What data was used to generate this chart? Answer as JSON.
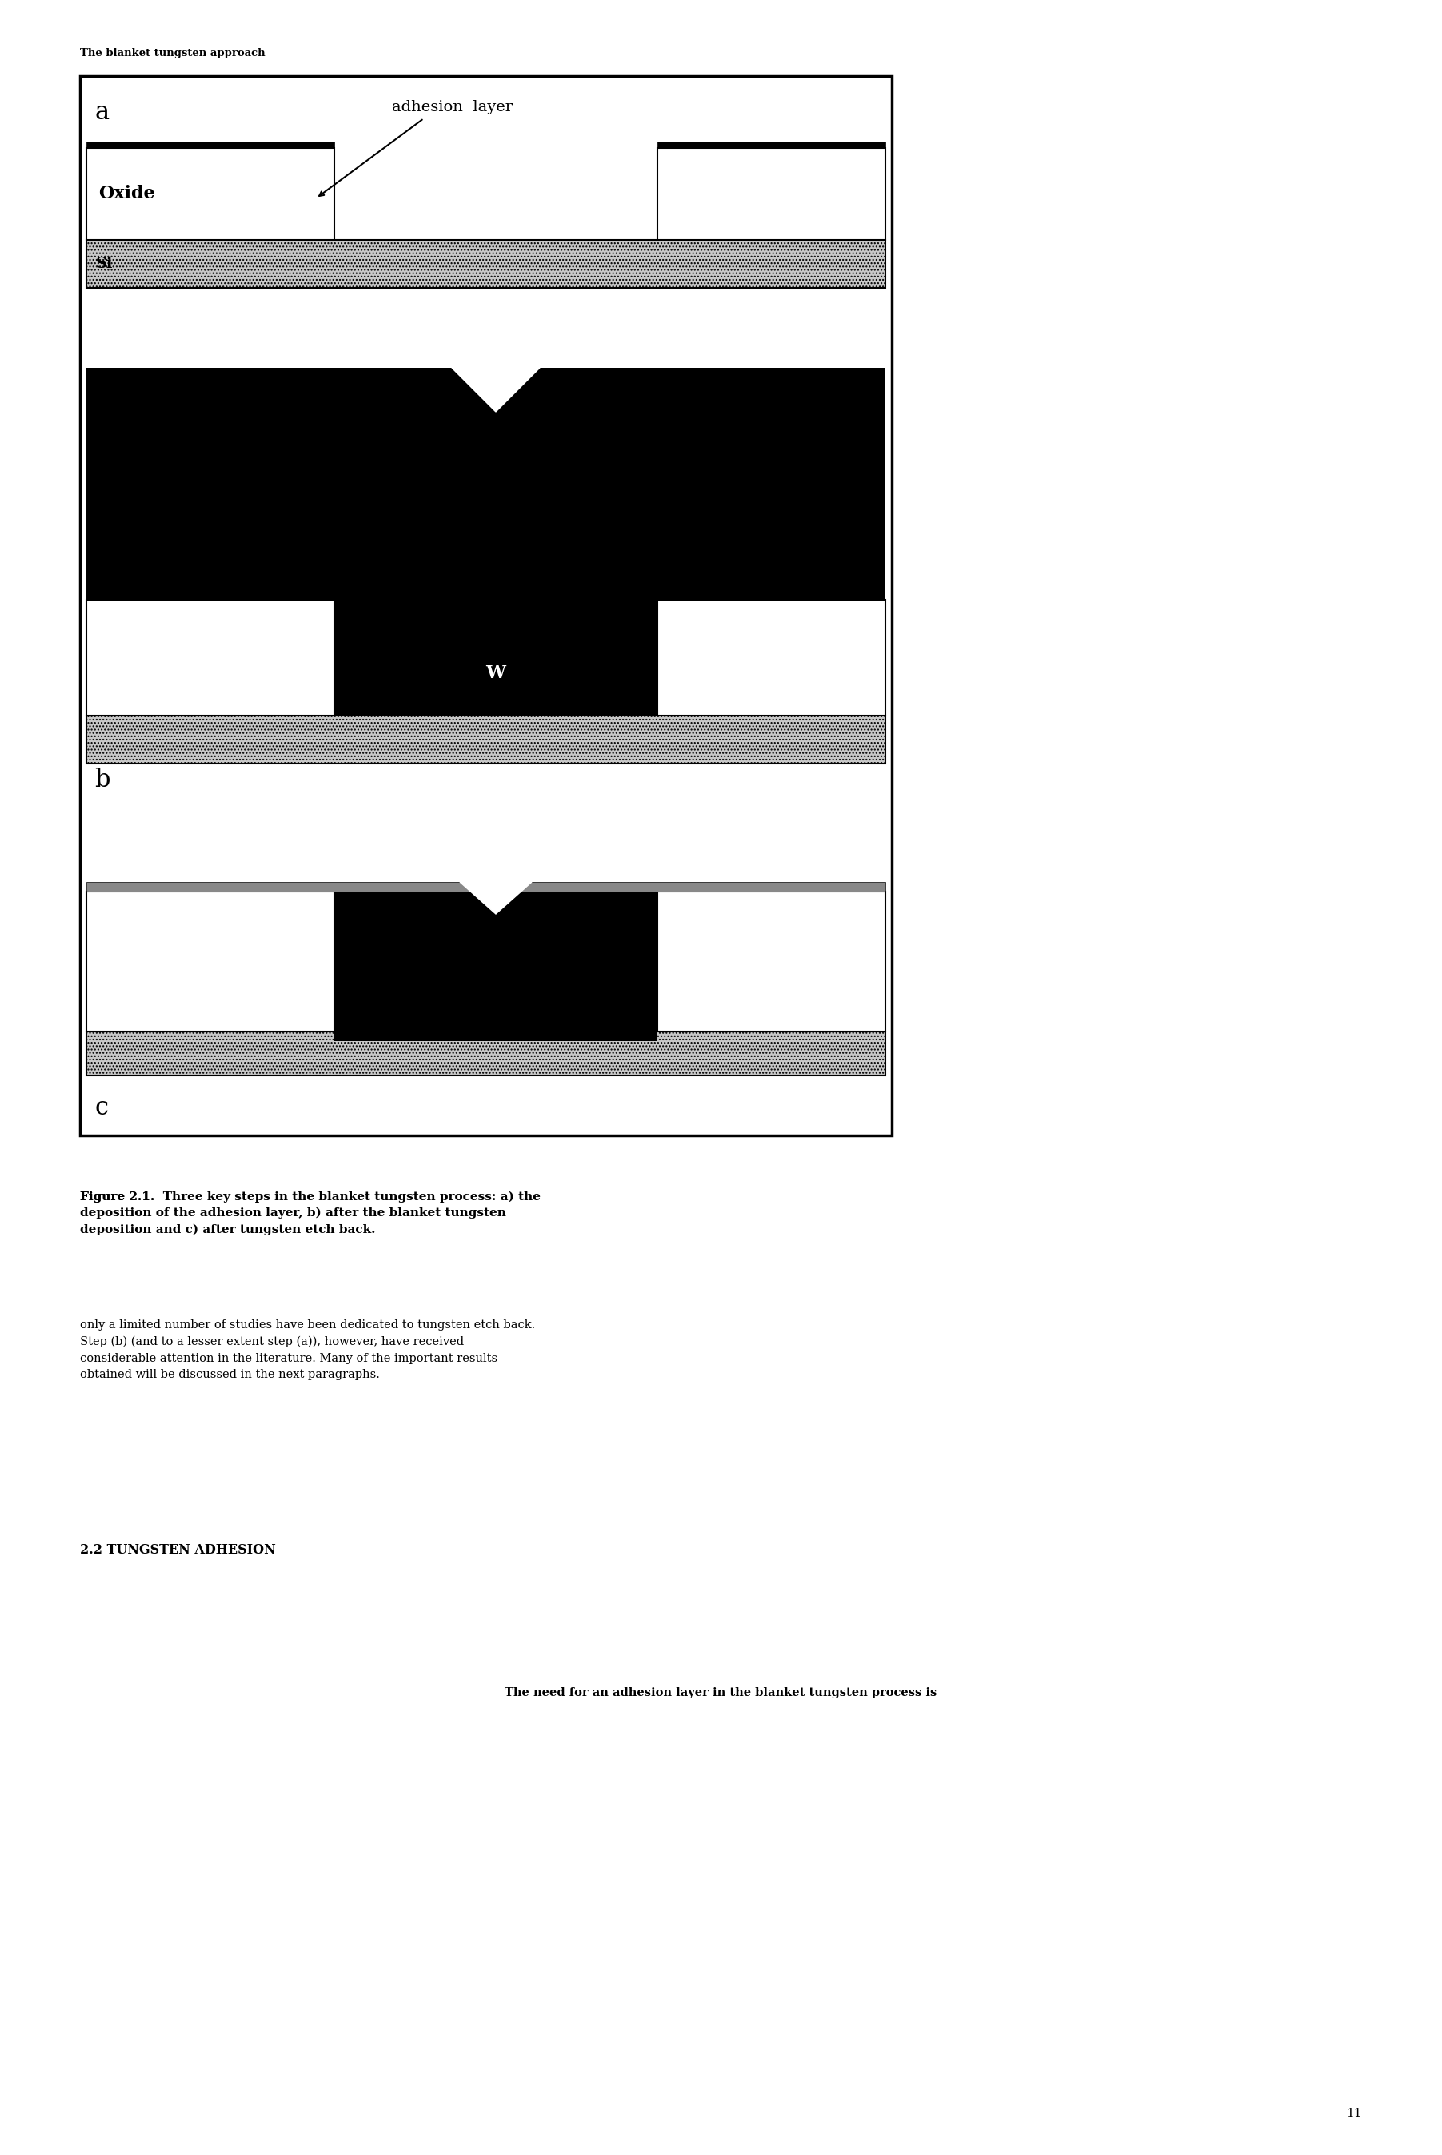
{
  "page_width": 18.03,
  "page_height": 26.95,
  "bg_color": "#ffffff",
  "header_text": "The blanket tungsten approach",
  "header_fontsize": 9.5,
  "figure_caption_bold": "Figure 2.1.",
  "figure_caption_rest": " Three key steps in the blanket tungsten process: a) the\ndeposition of the adhesion layer, b) after the blanket tungsten\ndeposition and c) after tungsten etch back.",
  "caption_fontsize": 11,
  "body_text1": "only a limited number of studies have been dedicated to tungsten etch back.\nStep (b) (and to a lesser extent step (a)), however, have received\nconsiderable attention in the literature. Many of the important results\nobtained will be discussed in the next paragraphs.",
  "body_fontsize": 10.5,
  "section_header": "2.2 TUNGSTEN ADHESION",
  "section_fontsize": 11.5,
  "body_text2": "The need for an adhesion layer in the blanket tungsten process is",
  "page_number": "11"
}
